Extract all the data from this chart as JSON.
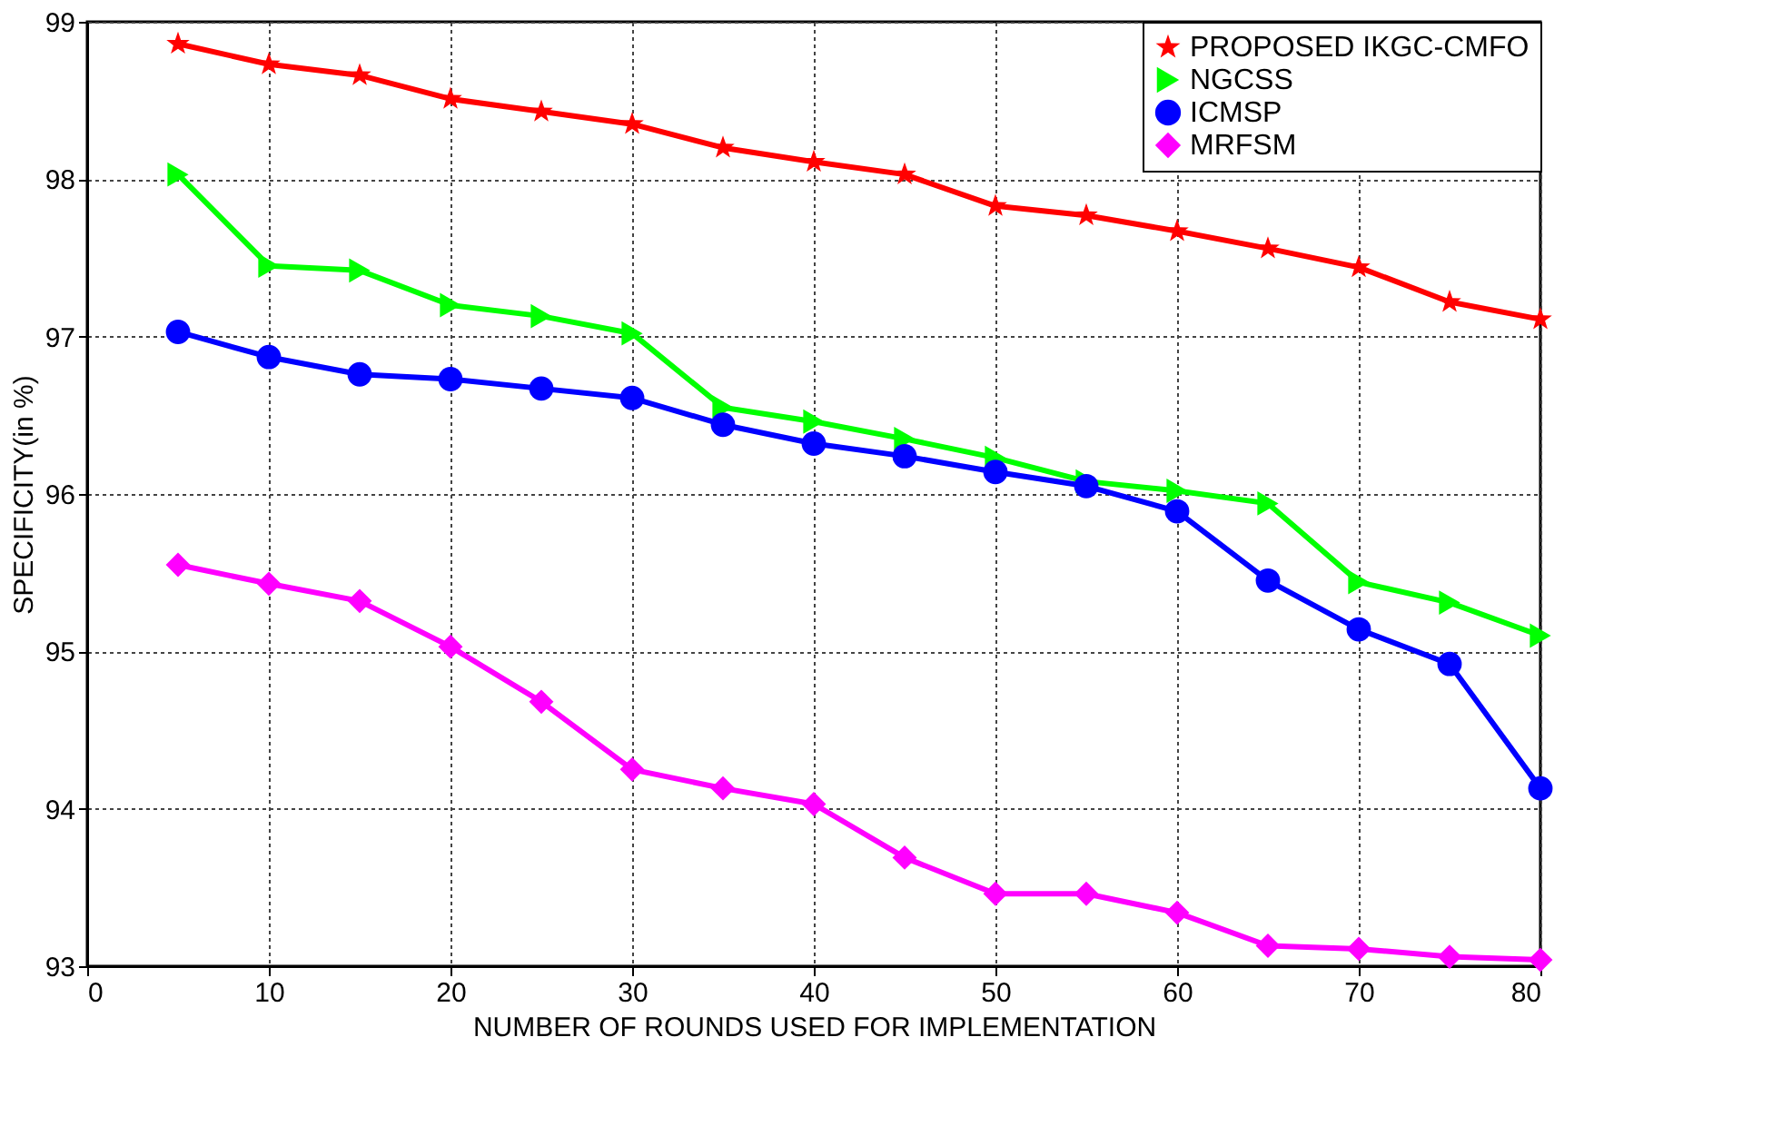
{
  "chart_data": {
    "type": "line",
    "xlabel": "NUMBER OF ROUNDS USED FOR IMPLEMENTATION",
    "ylabel": "SPECIFICITY(in %)",
    "x": [
      5,
      10,
      15,
      20,
      25,
      30,
      35,
      40,
      45,
      50,
      55,
      60,
      65,
      70,
      75,
      80
    ],
    "series": [
      {
        "name": "PROPOSED IKGC-CMFO",
        "color": "#ff0000",
        "marker": "star",
        "values": [
          98.86,
          98.73,
          98.66,
          98.51,
          98.43,
          98.35,
          98.2,
          98.11,
          98.03,
          97.83,
          97.77,
          97.67,
          97.56,
          97.44,
          97.22,
          97.11
        ]
      },
      {
        "name": "NGCSS",
        "color": "#00ff00",
        "marker": "triangle",
        "values": [
          98.03,
          97.45,
          97.42,
          97.2,
          97.13,
          97.02,
          96.55,
          96.46,
          96.35,
          96.23,
          96.08,
          96.02,
          95.94,
          95.44,
          95.31,
          95.1
        ]
      },
      {
        "name": "ICMSP",
        "color": "#0000ff",
        "marker": "circle",
        "values": [
          97.03,
          96.87,
          96.76,
          96.73,
          96.67,
          96.61,
          96.44,
          96.32,
          96.24,
          96.14,
          96.05,
          95.89,
          95.45,
          95.14,
          94.92,
          94.13
        ]
      },
      {
        "name": "MRFSM",
        "color": "#ff00ff",
        "marker": "diamond",
        "values": [
          95.55,
          95.43,
          95.32,
          95.03,
          94.68,
          94.25,
          94.13,
          94.03,
          93.69,
          93.46,
          93.46,
          93.34,
          93.13,
          93.11,
          93.06,
          93.04
        ]
      }
    ],
    "xlim": [
      0,
      80
    ],
    "xticks": [
      0,
      10,
      20,
      30,
      40,
      50,
      60,
      70,
      80
    ],
    "ylim": [
      93,
      99
    ],
    "yticks": [
      93,
      94,
      95,
      96,
      97,
      98,
      99
    ],
    "grid": true,
    "legend": "top right",
    "line_style": "solid"
  }
}
